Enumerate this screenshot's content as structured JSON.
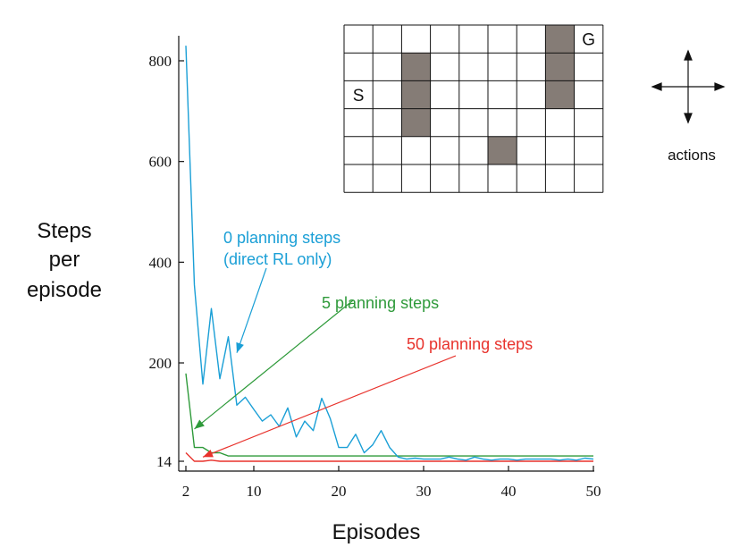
{
  "chart_data": {
    "type": "line",
    "xlabel": "Episodes",
    "ylabel_lines": [
      "Steps",
      "per",
      "episode"
    ],
    "xlim": [
      2,
      50
    ],
    "x_ticks": [
      2,
      10,
      20,
      30,
      40,
      50
    ],
    "y_ticks": [
      14,
      200,
      400,
      600,
      800
    ],
    "grid": false,
    "legend": "none",
    "x": [
      2,
      3,
      4,
      5,
      6,
      7,
      8,
      9,
      10,
      11,
      12,
      13,
      14,
      15,
      16,
      17,
      18,
      19,
      20,
      21,
      22,
      23,
      24,
      25,
      26,
      27,
      28,
      29,
      30,
      31,
      32,
      33,
      34,
      35,
      36,
      37,
      38,
      39,
      40,
      41,
      42,
      43,
      44,
      45,
      46,
      47,
      48,
      49,
      50
    ],
    "series": [
      {
        "name": "0 planning steps",
        "sublabel": "(direct RL only)",
        "color": "#1a9fd6",
        "values": [
          830,
          355,
          160,
          308,
          170,
          252,
          120,
          135,
          112,
          90,
          102,
          80,
          115,
          60,
          90,
          72,
          133,
          95,
          40,
          40,
          65,
          30,
          45,
          72,
          40,
          22,
          18,
          20,
          18,
          18,
          18,
          22,
          18,
          16,
          22,
          18,
          16,
          18,
          18,
          16,
          18,
          18,
          18,
          18,
          16,
          18,
          16,
          20,
          18
        ]
      },
      {
        "name": "5 planning steps",
        "color": "#2e9a3a",
        "values": [
          180,
          40,
          40,
          30,
          30,
          24,
          24,
          24,
          24,
          24,
          24,
          24,
          24,
          24,
          24,
          24,
          24,
          24,
          24,
          24,
          24,
          24,
          24,
          24,
          24,
          24,
          24,
          24,
          24,
          24,
          24,
          24,
          24,
          24,
          24,
          24,
          24,
          24,
          24,
          24,
          24,
          24,
          24,
          24,
          24,
          24,
          24,
          24,
          24
        ]
      },
      {
        "name": "50 planning steps",
        "color": "#e8322c",
        "values": [
          30,
          14,
          14,
          16,
          14,
          14,
          14,
          14,
          14,
          14,
          14,
          14,
          14,
          14,
          14,
          14,
          14,
          14,
          14,
          14,
          14,
          14,
          14,
          14,
          14,
          14,
          14,
          14,
          14,
          14,
          14,
          14,
          14,
          14,
          14,
          14,
          14,
          14,
          14,
          14,
          14,
          14,
          14,
          14,
          14,
          14,
          14,
          14,
          14
        ]
      }
    ],
    "annotations": [
      {
        "series": 0,
        "arrow_to": [
          8,
          220
        ]
      },
      {
        "series": 1,
        "arrow_to": [
          3,
          75
        ]
      },
      {
        "series": 2,
        "arrow_to": [
          4,
          22
        ]
      }
    ]
  },
  "gridworld": {
    "rows": 6,
    "cols": 9,
    "start_label": "S",
    "start_cell": [
      2,
      0
    ],
    "goal_label": "G",
    "goal_cell": [
      0,
      8
    ],
    "walls": [
      [
        1,
        2
      ],
      [
        2,
        2
      ],
      [
        3,
        2
      ],
      [
        4,
        5
      ],
      [
        0,
        7
      ],
      [
        1,
        7
      ],
      [
        2,
        7
      ]
    ],
    "wall_color": "#857c76"
  },
  "actions_label": "actions"
}
